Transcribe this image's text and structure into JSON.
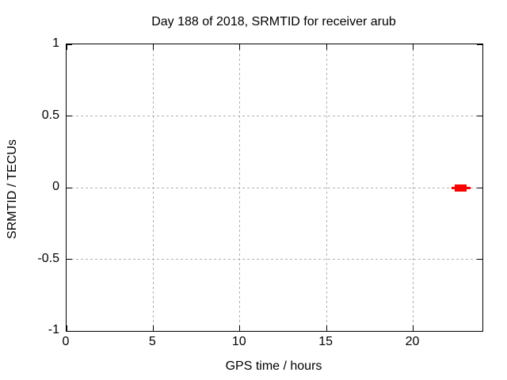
{
  "chart_data": {
    "type": "scatter",
    "title": "Day 188 of 2018, SRMTID for receiver arub",
    "xlabel": "GPS time / hours",
    "ylabel": "SRMTID / TECUs",
    "xlim": [
      0,
      24
    ],
    "ylim": [
      -1,
      1
    ],
    "xticks": {
      "values": [
        0,
        5,
        10,
        15,
        20
      ],
      "labels": [
        "0",
        "5",
        "10",
        "15",
        "20"
      ]
    },
    "yticks": {
      "values": [
        -1,
        -0.5,
        0,
        0.5,
        1
      ],
      "labels": [
        "-1",
        "-0.5",
        "0",
        "0.5",
        "1"
      ]
    },
    "grid": true,
    "legend": "none",
    "background_color": "#ffffff",
    "axis_color": "#000000",
    "grid_color": "#b0b0b0",
    "series": [
      {
        "name": "SRMTID",
        "color": "#ff0000",
        "marker": "filled-square",
        "y_value": 0.0,
        "x_outer_extent": [
          22.2,
          23.3
        ],
        "x_core_extent": [
          22.4,
          23.1
        ],
        "description": "cluster of overlapping red square points near SRMTID = 0 around GPS time 22.2-23.3 h"
      }
    ]
  }
}
